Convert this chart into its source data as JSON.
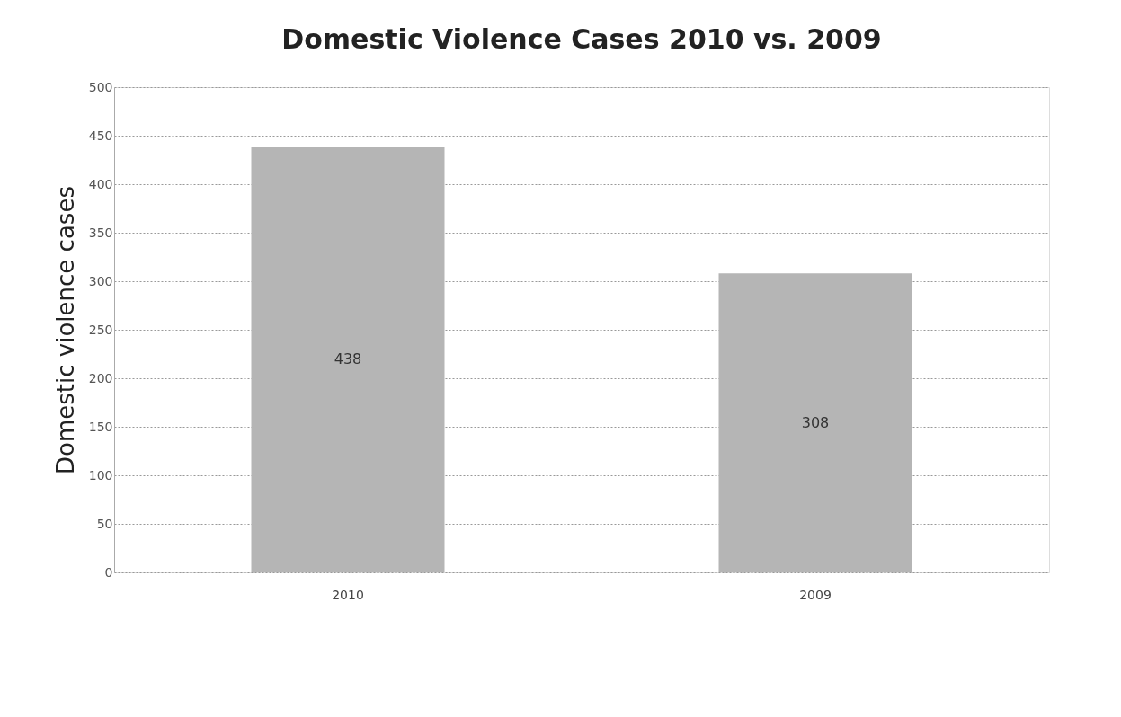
{
  "chart_data": {
    "type": "bar",
    "title": "Domestic Violence Cases 2010 vs. 2009",
    "ylabel": "Domestic violence cases",
    "categories": [
      "2010",
      "2009"
    ],
    "series": [
      {
        "color": "#b5b5b5",
        "values": [
          438,
          308
        ]
      }
    ],
    "ylim": [
      0,
      500
    ],
    "yticks": [
      0,
      50,
      100,
      150,
      200,
      250,
      300,
      350,
      400,
      450,
      500
    ],
    "grid": "y",
    "data_labels": true
  }
}
